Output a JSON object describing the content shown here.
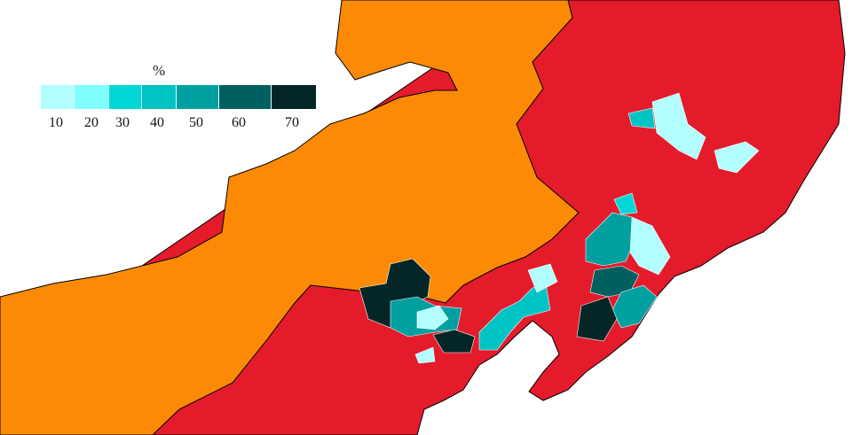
{
  "legend": {
    "title": "%",
    "bins": [
      {
        "label": "10",
        "color": "#b3ffff"
      },
      {
        "label": "20",
        "color": "#80ffff"
      },
      {
        "label": "30",
        "color": "#00d8d8"
      },
      {
        "label": "40",
        "color": "#00c4c4"
      },
      {
        "label": "50",
        "color": "#009fa0"
      },
      {
        "label": "60",
        "color": "#006060"
      },
      {
        "label": "70",
        "color": "#052626"
      }
    ]
  },
  "colors": {
    "orange_region": "#fc8a05",
    "red_region": "#e31b2b",
    "sea": "#ffffff",
    "internal_borders": "#f5d8c8",
    "provincial_borders": "#000000"
  }
}
